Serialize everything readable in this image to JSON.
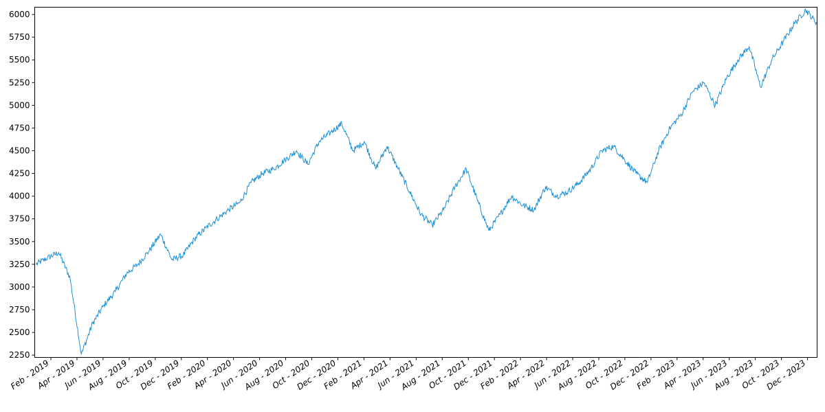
{
  "chart_data": {
    "type": "line",
    "title": "",
    "xlabel": "",
    "ylabel": "",
    "ylim": [
      2225,
      6080
    ],
    "y_ticks": [
      2250,
      2500,
      2750,
      3000,
      3250,
      3500,
      3750,
      4000,
      4250,
      4500,
      4750,
      5000,
      5250,
      5500,
      5750,
      6000
    ],
    "x_ticks": [
      "Feb - 2019",
      "Apr - 2019",
      "Jun - 2019",
      "Aug - 2019",
      "Oct - 2019",
      "Dec - 2019",
      "Feb - 2020",
      "Apr - 2020",
      "Jun - 2020",
      "Aug - 2020",
      "Oct - 2020",
      "Dec - 2020",
      "Feb - 2021",
      "Apr - 2021",
      "Jun - 2021",
      "Aug - 2021",
      "Oct - 2021",
      "Dec - 2021",
      "Feb - 2022",
      "Apr - 2022",
      "Jun - 2022",
      "Aug - 2022",
      "Oct - 2022",
      "Dec - 2022",
      "Feb - 2023",
      "Apr - 2023",
      "Jun - 2023",
      "Aug - 2023",
      "Oct - 2023",
      "Dec - 2023"
    ],
    "grid": false,
    "legend": "none",
    "series_color": "#1a8fd8",
    "series": [
      {
        "x": [
          "Feb - 2019",
          "Mar - 2019",
          "Mar - 2019",
          "Apr - 2019",
          "Apr - 2019",
          "May - 2019",
          "Jun - 2019",
          "Jul - 2019",
          "Aug - 2019",
          "Sep - 2019",
          "Oct - 2019",
          "Oct - 2019",
          "Nov - 2019",
          "Dec - 2019",
          "Dec - 2019",
          "Jan - 2020",
          "Feb - 2020",
          "Mar - 2020",
          "Mar - 2020",
          "Apr - 2020",
          "May - 2020",
          "Jun - 2020",
          "Jul - 2020",
          "Aug - 2020",
          "Sep - 2020",
          "Oct - 2020",
          "Nov - 2020",
          "Dec - 2020",
          "Jan - 2021",
          "Feb - 2021",
          "Mar - 2021",
          "Apr - 2021",
          "Apr - 2021",
          "May - 2021",
          "Jun - 2021",
          "Jun - 2021",
          "Jul - 2021",
          "Aug - 2021",
          "Sep - 2021",
          "Oct - 2021",
          "Nov - 2021",
          "Dec - 2021",
          "Jan - 2022",
          "Feb - 2022",
          "Mar - 2022",
          "Apr - 2022",
          "May - 2022",
          "Jun - 2022",
          "Jul - 2022",
          "Aug - 2022",
          "Sep - 2022",
          "Oct - 2022",
          "Nov - 2022",
          "Nov - 2022",
          "Dec - 2022",
          "Jan - 2023",
          "Feb - 2023",
          "Mar - 2023",
          "Apr - 2023",
          "May - 2023",
          "Jun - 2023",
          "Jul - 2023",
          "Aug - 2023",
          "Aug - 2023",
          "Sep - 2023",
          "Oct - 2023",
          "Nov - 2023",
          "Dec - 2023",
          "Dec - 2023",
          "Jan - 2024"
        ],
        "y": [
          3250,
          3320,
          3380,
          3100,
          2260,
          2600,
          2800,
          2950,
          3150,
          3250,
          3400,
          3580,
          3300,
          3350,
          3530,
          3650,
          3750,
          3850,
          3930,
          4150,
          4250,
          4300,
          4400,
          4500,
          4350,
          4600,
          4700,
          4800,
          4500,
          4600,
          4300,
          4550,
          4300,
          4050,
          3800,
          3680,
          3850,
          4100,
          4300,
          3950,
          3620,
          3800,
          4000,
          3900,
          3850,
          4100,
          4000,
          4050,
          4150,
          4300,
          4500,
          4550,
          4400,
          4250,
          4150,
          4500,
          4750,
          4900,
          5150,
          5250,
          5000,
          5300,
          5500,
          5650,
          5200,
          5500,
          5700,
          5900,
          6050,
          5900
        ]
      }
    ]
  }
}
